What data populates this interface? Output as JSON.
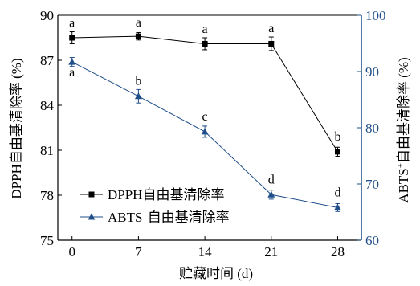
{
  "chart_data": {
    "type": "line",
    "x": [
      0,
      7,
      14,
      21,
      28
    ],
    "xlabel": "贮藏时间 (d)",
    "ylabel_left": "DPPH自由基清除率 (%)",
    "ylabel_right_prefix": "ABTS",
    "ylabel_right_sup": "+",
    "ylabel_right_suffix": "自由基清除率 (%)",
    "xlim": [
      -1.5,
      30.5
    ],
    "xticks": [
      "0",
      "7",
      "14",
      "21",
      "28"
    ],
    "ylim_left": [
      75,
      90
    ],
    "yticks_left": [
      "75",
      "78",
      "81",
      "84",
      "87",
      "90"
    ],
    "ylim_right": [
      60,
      100
    ],
    "yticks_right": [
      "60",
      "70",
      "80",
      "90",
      "100"
    ],
    "left_axis_color": "#000000",
    "right_axis_color": "#1f4e89",
    "legend_position": "lower-left",
    "series": [
      {
        "name": "DPPH自由基清除率",
        "axis": "left",
        "marker": "square",
        "color": "#000000",
        "values": [
          88.5,
          88.6,
          88.1,
          88.1,
          80.9
        ],
        "errors": [
          0.4,
          0.25,
          0.4,
          0.45,
          0.3
        ],
        "labels": [
          "a",
          "a",
          "a",
          "a",
          "b"
        ]
      },
      {
        "name_prefix": "ABTS",
        "name_sup": "+",
        "name_suffix": "自由基清除率",
        "axis": "right",
        "marker": "triangle",
        "color": "#1f4e89",
        "values": [
          91.7,
          85.6,
          79.3,
          68.1,
          65.8
        ],
        "errors": [
          0.8,
          1.2,
          1.0,
          0.8,
          0.7
        ],
        "labels": [
          "a",
          "b",
          "c",
          "d",
          "d"
        ]
      }
    ]
  }
}
